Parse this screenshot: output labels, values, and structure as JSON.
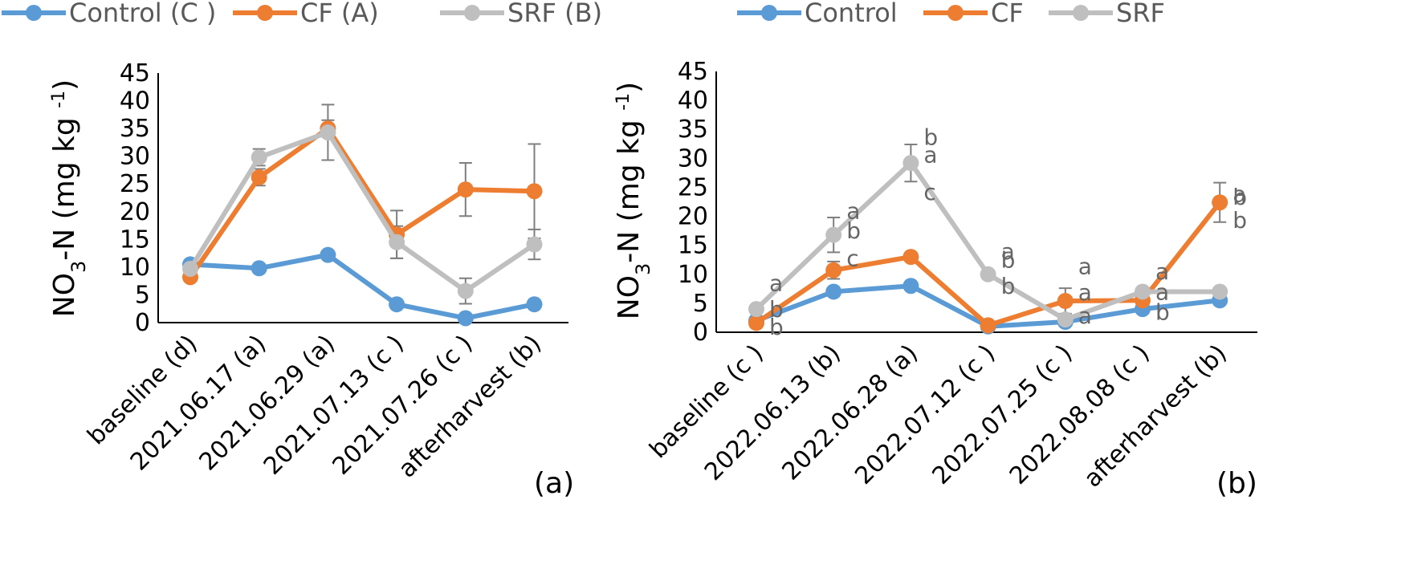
{
  "chart_data": [
    {
      "type": "line",
      "panel_label": "(a)",
      "ylabel": "NO₃-N (mg kg⁻¹)",
      "ylim": [
        0,
        45
      ],
      "yticks": [
        0,
        5,
        10,
        15,
        20,
        25,
        30,
        35,
        40,
        45
      ],
      "grid": false,
      "legend": "top",
      "categories": [
        "baseline (d)",
        "2021.06.17 (a)",
        "2021.06.29 (a)",
        "2021.07.13 (c )",
        "2021.07.26 (c )",
        "afterharvest (b)"
      ],
      "series": [
        {
          "name": "Control (C )",
          "color": "#5b9bd5",
          "values": [
            10.5,
            9.8,
            12.2,
            3.3,
            0.8,
            3.3
          ],
          "errors": [
            0,
            0,
            0,
            0,
            0,
            0
          ]
        },
        {
          "name": "CF (A)",
          "color": "#ed7d31",
          "values": [
            8.2,
            26.2,
            35.0,
            15.9,
            24.0,
            23.7
          ],
          "errors": [
            0,
            1.5,
            1.5,
            4.3,
            4.8,
            8.5
          ]
        },
        {
          "name": "SRF (B)",
          "color": "#bfbfbf",
          "values": [
            9.7,
            29.8,
            34.3,
            14.5,
            5.7,
            14.1
          ],
          "errors": [
            0,
            1.5,
            5.0,
            2.9,
            2.3,
            2.7
          ]
        }
      ],
      "annotations": []
    },
    {
      "type": "line",
      "panel_label": "(b)",
      "ylabel": "NO₃-N (mg kg⁻¹)",
      "ylim": [
        0,
        45
      ],
      "yticks": [
        0,
        5,
        10,
        15,
        20,
        25,
        30,
        35,
        40,
        45
      ],
      "grid": false,
      "legend": "top",
      "categories": [
        "baseline (c )",
        "2022.06.13 (b)",
        "2022.06.28 (a)",
        "2022.07.12 (c )",
        "2022.07.25 (c )",
        "2022.08.08 (c )",
        "afterharvest (b)"
      ],
      "series": [
        {
          "name": "Control",
          "color": "#5b9bd5",
          "values": [
            2.0,
            7.0,
            8.0,
            1.0,
            1.8,
            4.0,
            5.5
          ],
          "errors": [
            0,
            0,
            0,
            0,
            0,
            0,
            0
          ]
        },
        {
          "name": "CF",
          "color": "#ed7d31",
          "values": [
            1.6,
            10.7,
            13.0,
            1.2,
            5.4,
            5.5,
            22.4
          ],
          "errors": [
            0,
            1.5,
            0,
            0,
            2.2,
            0,
            3.4
          ]
        },
        {
          "name": "SRF",
          "color": "#bfbfbf",
          "values": [
            4.0,
            16.8,
            29.2,
            10.0,
            2.2,
            7.0,
            7.0
          ],
          "errors": [
            0,
            3.0,
            3.2,
            0,
            0,
            0,
            0
          ]
        }
      ],
      "annotations": [
        {
          "text": "a",
          "x": 0,
          "dy": 4.5
        },
        {
          "text": "b",
          "x": 0,
          "dy": 0
        },
        {
          "text": "b",
          "x": 0,
          "dy": -3.0
        },
        {
          "text": "a",
          "x": 1,
          "dy": 4.2
        },
        {
          "text": "b",
          "x": 1,
          "dy": 0.8
        },
        {
          "text": "c",
          "x": 1,
          "dy": -4.0
        },
        {
          "text": "a",
          "x": 2,
          "dy": 1.5
        },
        {
          "text": "b",
          "x": 2,
          "dy": 4.5
        },
        {
          "text": "c",
          "x": 2,
          "dy": -5.0
        },
        {
          "text": "a",
          "x": 3,
          "dy": 4.0
        },
        {
          "text": "b",
          "x": 3,
          "dy": 2.5
        },
        {
          "text": "b",
          "x": 3,
          "dy": -2.0
        },
        {
          "text": "a",
          "x": 4,
          "dy": 6.0
        },
        {
          "text": "a",
          "x": 4,
          "dy": 1.5
        },
        {
          "text": "a",
          "x": 4,
          "dy": -2.5
        },
        {
          "text": "a",
          "x": 5,
          "dy": 3.5
        },
        {
          "text": "a",
          "x": 5,
          "dy": 0
        },
        {
          "text": "b",
          "x": 5,
          "dy": -3.5
        },
        {
          "text": "a",
          "x": 6,
          "dy": 1.5
        },
        {
          "text": "b",
          "x": 6,
          "dy": 1.0
        },
        {
          "text": "b",
          "x": 6,
          "dy": -3.0
        }
      ]
    }
  ]
}
